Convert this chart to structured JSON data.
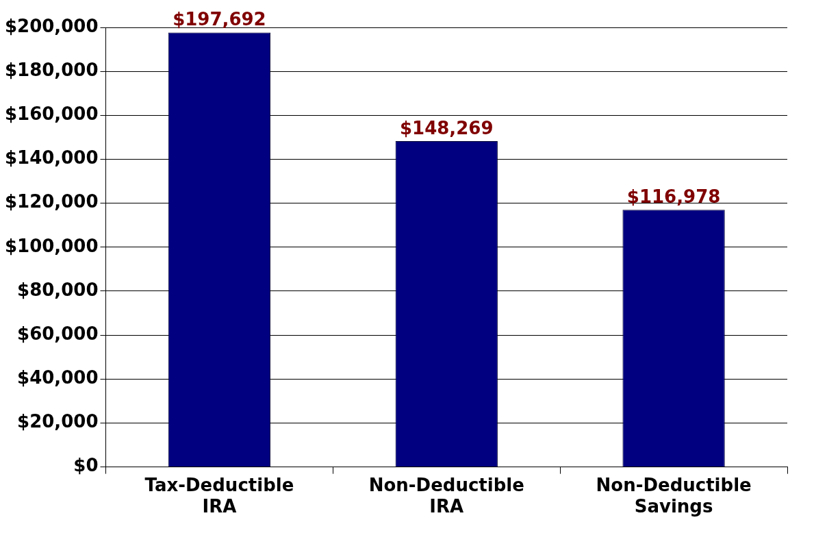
{
  "chart_data": {
    "type": "bar",
    "categories": [
      "Tax-Deductible IRA",
      "Non-Deductible IRA",
      "Non-Deductible Savings"
    ],
    "values": [
      197692,
      148269,
      116978
    ],
    "value_labels": [
      "$197,692",
      "$148,269",
      "$116,978"
    ],
    "color": "#000080",
    "ylim": [
      0,
      200000
    ],
    "yticks": [
      {
        "value": 0,
        "label": "$0"
      },
      {
        "value": 20000,
        "label": "$20,000"
      },
      {
        "value": 40000,
        "label": "$40,000"
      },
      {
        "value": 60000,
        "label": "$60,000"
      },
      {
        "value": 80000,
        "label": "$80,000"
      },
      {
        "value": 100000,
        "label": "$100,000"
      },
      {
        "value": 120000,
        "label": "$120,000"
      },
      {
        "value": 140000,
        "label": "$140,000"
      },
      {
        "value": 160000,
        "label": "$160,000"
      },
      {
        "value": 180000,
        "label": "$180,000"
      },
      {
        "value": 200000,
        "label": "$200,000"
      }
    ],
    "grid": "y",
    "legend": false
  }
}
